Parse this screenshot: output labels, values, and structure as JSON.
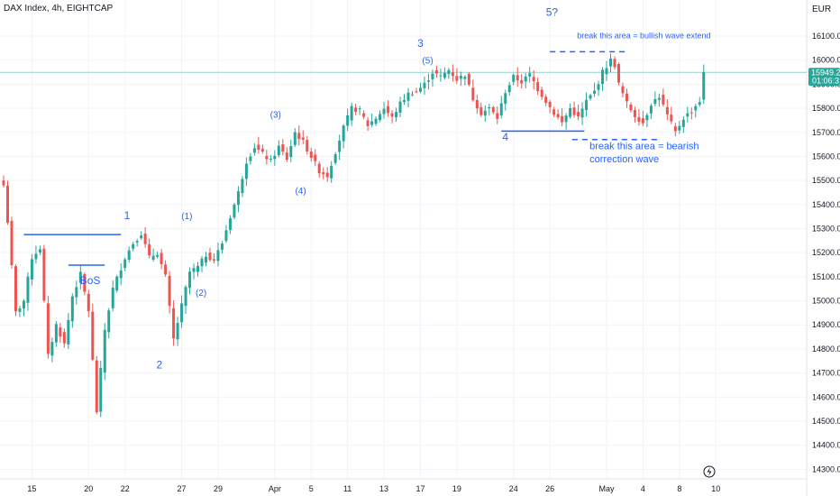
{
  "header": {
    "title": "DAX Index, 4h, EIGHTCAP"
  },
  "chart_data": {
    "type": "candlestick",
    "y_unit": "EUR",
    "ylim": [
      14260,
      16250
    ],
    "y_ticks": [
      16100,
      16000,
      15900,
      15800,
      15700,
      15600,
      15500,
      15400,
      15300,
      15200,
      15100,
      15000,
      14900,
      14800,
      14700,
      14600,
      14500,
      14400,
      14300
    ],
    "y_tick_labels": [
      "16100.00",
      "16000.00",
      "15900.00",
      "15800.00",
      "15700.00",
      "15600.00",
      "15500.00",
      "15400.00",
      "15300.00",
      "15200.00",
      "15100.00",
      "15000.00",
      "14900.00",
      "14800.00",
      "14700.00",
      "14600.00",
      "14500.00",
      "14400.00",
      "14300.00"
    ],
    "x_ticks": [
      {
        "label": "15",
        "index": 7
      },
      {
        "label": "20",
        "index": 21
      },
      {
        "label": "22",
        "index": 30
      },
      {
        "label": "27",
        "index": 44
      },
      {
        "label": "29",
        "index": 53
      },
      {
        "label": "Apr",
        "index": 67
      },
      {
        "label": "5",
        "index": 76
      },
      {
        "label": "11",
        "index": 85
      },
      {
        "label": "13",
        "index": 94
      },
      {
        "label": "17",
        "index": 103
      },
      {
        "label": "19",
        "index": 112
      },
      {
        "label": "24",
        "index": 126
      },
      {
        "label": "26",
        "index": 135
      },
      {
        "label": "May",
        "index": 149
      },
      {
        "label": "4",
        "index": 158
      },
      {
        "label": "8",
        "index": 167
      },
      {
        "label": "10",
        "index": 176
      }
    ],
    "last_price": {
      "value": 15949.24,
      "label": "15949.24",
      "countdown": "01:06:31"
    },
    "anchors": [
      [
        0,
        15480
      ],
      [
        1,
        15330
      ],
      [
        3,
        14950
      ],
      [
        5,
        15000
      ],
      [
        7,
        15180
      ],
      [
        9,
        15220
      ],
      [
        11,
        14770
      ],
      [
        13,
        14900
      ],
      [
        15,
        14820
      ],
      [
        17,
        15020
      ],
      [
        19,
        15110
      ],
      [
        21,
        14960
      ],
      [
        23,
        14540
      ],
      [
        25,
        14880
      ],
      [
        27,
        15050
      ],
      [
        30,
        15180
      ],
      [
        32,
        15240
      ],
      [
        34,
        15280
      ],
      [
        36,
        15180
      ],
      [
        38,
        15200
      ],
      [
        40,
        15100
      ],
      [
        42,
        14840
      ],
      [
        44,
        14980
      ],
      [
        46,
        15120
      ],
      [
        48,
        15140
      ],
      [
        50,
        15190
      ],
      [
        52,
        15170
      ],
      [
        54,
        15240
      ],
      [
        56,
        15350
      ],
      [
        58,
        15450
      ],
      [
        60,
        15580
      ],
      [
        62,
        15640
      ],
      [
        64,
        15610
      ],
      [
        66,
        15580
      ],
      [
        68,
        15640
      ],
      [
        70,
        15590
      ],
      [
        72,
        15700
      ],
      [
        74,
        15660
      ],
      [
        76,
        15600
      ],
      [
        78,
        15540
      ],
      [
        80,
        15520
      ],
      [
        82,
        15620
      ],
      [
        84,
        15720
      ],
      [
        86,
        15800
      ],
      [
        88,
        15790
      ],
      [
        90,
        15730
      ],
      [
        92,
        15760
      ],
      [
        94,
        15800
      ],
      [
        96,
        15760
      ],
      [
        98,
        15820
      ],
      [
        100,
        15860
      ],
      [
        102,
        15870
      ],
      [
        104,
        15900
      ],
      [
        106,
        15950
      ],
      [
        108,
        15930
      ],
      [
        110,
        15960
      ],
      [
        112,
        15920
      ],
      [
        114,
        15940
      ],
      [
        116,
        15840
      ],
      [
        118,
        15780
      ],
      [
        120,
        15800
      ],
      [
        122,
        15760
      ],
      [
        124,
        15870
      ],
      [
        126,
        15930
      ],
      [
        128,
        15910
      ],
      [
        130,
        15940
      ],
      [
        132,
        15880
      ],
      [
        134,
        15830
      ],
      [
        136,
        15780
      ],
      [
        138,
        15740
      ],
      [
        140,
        15800
      ],
      [
        142,
        15760
      ],
      [
        144,
        15830
      ],
      [
        146,
        15870
      ],
      [
        148,
        15950
      ],
      [
        150,
        16000
      ],
      [
        151,
        15980
      ],
      [
        152,
        15900
      ],
      [
        154,
        15820
      ],
      [
        156,
        15770
      ],
      [
        158,
        15740
      ],
      [
        160,
        15820
      ],
      [
        162,
        15850
      ],
      [
        164,
        15770
      ],
      [
        166,
        15700
      ],
      [
        168,
        15760
      ],
      [
        170,
        15790
      ],
      [
        172,
        15830
      ],
      [
        173,
        15950
      ]
    ],
    "annotations": [
      {
        "text": "1",
        "index": 30.5,
        "y": 15340
      },
      {
        "text": "2",
        "index": 38.5,
        "y": 14720
      },
      {
        "text": "3",
        "index": 103,
        "y": 16055
      },
      {
        "text": "4",
        "index": 124,
        "y": 15665
      },
      {
        "text": "5?",
        "index": 135.5,
        "y": 16185
      },
      {
        "text": "(1)",
        "index": 45.3,
        "y": 15340
      },
      {
        "text": "(2)",
        "index": 48.8,
        "y": 15020
      },
      {
        "text": "(3)",
        "index": 67.2,
        "y": 15760
      },
      {
        "text": "(4)",
        "index": 73.4,
        "y": 15445
      },
      {
        "text": "(5)",
        "index": 104.8,
        "y": 15985
      },
      {
        "text": "BoS",
        "index": 21.4,
        "y": 15070
      },
      {
        "text": "break this area = bullish wave extend",
        "index": 141.7,
        "y": 16090
      },
      {
        "text": "break this area = bearish",
        "index": 144.8,
        "y": 15630
      },
      {
        "text": "correction wave",
        "index": 144.8,
        "y": 15575
      }
    ],
    "levels": [
      {
        "name": "wave-1-high",
        "y": 15275,
        "from": 5,
        "to": 29,
        "style": "solid"
      },
      {
        "name": "bos-level",
        "y": 15148,
        "from": 16,
        "to": 25,
        "style": "solid"
      },
      {
        "name": "wave-4-low",
        "y": 15705,
        "from": 123,
        "to": 143.5,
        "style": "solid"
      },
      {
        "name": "upper-break",
        "y": 16035,
        "from": 135,
        "to": 154,
        "style": "dashed"
      },
      {
        "name": "lower-break",
        "y": 15670,
        "from": 140.5,
        "to": 161.5,
        "style": "dashed"
      }
    ],
    "colors": {
      "up": "#26a69a",
      "down": "#ef5350",
      "annotation": "#2962ff",
      "price_line": "#26a69a",
      "grid": "#f0f3fa"
    },
    "grid": true
  },
  "icons": {
    "lightning": "lightning-icon"
  }
}
